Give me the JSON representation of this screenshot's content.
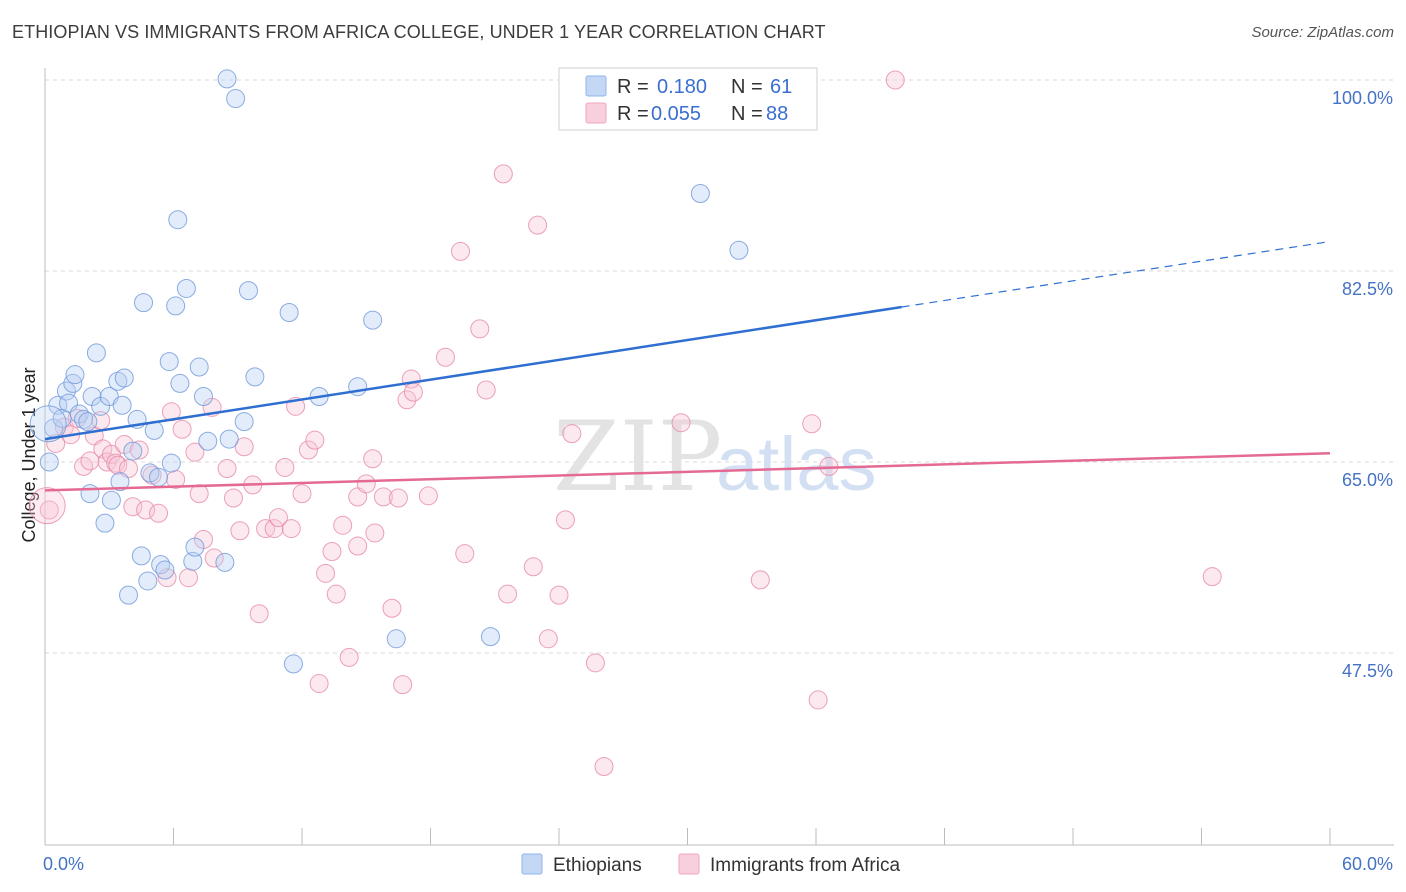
{
  "title": "ETHIOPIAN VS IMMIGRANTS FROM AFRICA COLLEGE, UNDER 1 YEAR CORRELATION CHART",
  "source": "Source: ZipAtlas.com",
  "watermark": {
    "zip": "ZIP",
    "atlas": "atlas"
  },
  "legend": {
    "r_label": "R =",
    "n_label": "N =",
    "rows": [
      {
        "r": "0.180",
        "n": "61",
        "color": "#8fb4ec"
      },
      {
        "r": "0.055",
        "n": "88",
        "color": "#f3a6bf"
      }
    ]
  },
  "chart_data": {
    "type": "scatter",
    "title": "ETHIOPIAN VS IMMIGRANTS FROM AFRICA COLLEGE, UNDER 1 YEAR CORRELATION CHART",
    "xlabel": "",
    "ylabel": "College, Under 1 year",
    "xlim": [
      0,
      60
    ],
    "ylim": [
      30,
      102
    ],
    "x_tick_labels": [
      "0.0%",
      "60.0%"
    ],
    "y_ticks": [
      47.5,
      65.0,
      82.5,
      100.0
    ],
    "y_tick_labels": [
      "47.5%",
      "65.0%",
      "82.5%",
      "100.0%"
    ],
    "grid": "horizontal dashed",
    "legend_position": "top-center",
    "series": [
      {
        "name": "Ethiopians",
        "color": "#8fb4ec",
        "stroke": "#6f98da",
        "trend": {
          "x1": 0,
          "y1": 67.1,
          "x2": 40,
          "y2": 79.2,
          "dash_to_x": 60,
          "dash_to_y": 85.2,
          "color": "#2e6fd1"
        },
        "points": [
          [
            0.2,
            65.0
          ],
          [
            0.4,
            68.1
          ],
          [
            0.6,
            70.2
          ],
          [
            0.8,
            69.0
          ],
          [
            1.0,
            71.5
          ],
          [
            1.1,
            70.4
          ],
          [
            1.3,
            72.2
          ],
          [
            1.4,
            73.0
          ],
          [
            1.6,
            69.4
          ],
          [
            1.8,
            68.9
          ],
          [
            2.0,
            68.7
          ],
          [
            2.1,
            62.1
          ],
          [
            2.2,
            71.0
          ],
          [
            2.4,
            75.0
          ],
          [
            2.6,
            70.1
          ],
          [
            2.8,
            59.4
          ],
          [
            3.0,
            71.0
          ],
          [
            3.1,
            61.5
          ],
          [
            3.4,
            72.4
          ],
          [
            3.5,
            63.2
          ],
          [
            3.6,
            70.2
          ],
          [
            3.7,
            72.7
          ],
          [
            3.9,
            52.8
          ],
          [
            4.1,
            66.0
          ],
          [
            4.3,
            68.9
          ],
          [
            4.5,
            56.4
          ],
          [
            4.6,
            79.6
          ],
          [
            4.8,
            54.1
          ],
          [
            4.9,
            64.0
          ],
          [
            5.1,
            67.9
          ],
          [
            5.3,
            63.6
          ],
          [
            5.4,
            55.6
          ],
          [
            5.6,
            55.1
          ],
          [
            5.8,
            74.2
          ],
          [
            5.9,
            64.9
          ],
          [
            6.1,
            79.3
          ],
          [
            6.2,
            87.2
          ],
          [
            6.3,
            72.2
          ],
          [
            6.6,
            80.9
          ],
          [
            6.9,
            55.9
          ],
          [
            7.0,
            57.2
          ],
          [
            7.2,
            73.7
          ],
          [
            7.4,
            71.0
          ],
          [
            7.6,
            66.9
          ],
          [
            8.4,
            55.8
          ],
          [
            8.6,
            67.1
          ],
          [
            8.5,
            100.1
          ],
          [
            8.9,
            98.3
          ],
          [
            9.3,
            68.7
          ],
          [
            9.5,
            80.7
          ],
          [
            9.8,
            72.8
          ],
          [
            11.4,
            78.7
          ],
          [
            11.6,
            46.5
          ],
          [
            12.8,
            71.0
          ],
          [
            14.6,
            71.9
          ],
          [
            15.3,
            78.0
          ],
          [
            16.4,
            48.8
          ],
          [
            20.8,
            49.0
          ],
          [
            30.6,
            89.6
          ],
          [
            32.4,
            84.4
          ],
          [
            0.15,
            68.5
          ]
        ]
      },
      {
        "name": "Immigrants from Africa",
        "color": "#f3a6bf",
        "stroke": "#e78aa8",
        "trend": {
          "x1": 0,
          "y1": 62.4,
          "x2": 60,
          "y2": 65.8,
          "color": "#e46a94"
        },
        "points": [
          [
            0.2,
            60.6
          ],
          [
            0.5,
            66.7
          ],
          [
            0.9,
            68.2
          ],
          [
            1.2,
            67.5
          ],
          [
            1.5,
            69.0
          ],
          [
            1.8,
            64.6
          ],
          [
            2.1,
            65.1
          ],
          [
            2.3,
            67.4
          ],
          [
            2.6,
            68.8
          ],
          [
            2.7,
            66.2
          ],
          [
            2.9,
            65.0
          ],
          [
            3.1,
            65.7
          ],
          [
            3.3,
            64.9
          ],
          [
            3.4,
            64.7
          ],
          [
            3.7,
            66.6
          ],
          [
            3.9,
            64.4
          ],
          [
            4.1,
            60.9
          ],
          [
            4.4,
            66.1
          ],
          [
            4.7,
            60.6
          ],
          [
            5.0,
            63.8
          ],
          [
            5.3,
            60.3
          ],
          [
            5.7,
            54.4
          ],
          [
            5.9,
            69.6
          ],
          [
            6.1,
            63.4
          ],
          [
            6.4,
            68.0
          ],
          [
            6.7,
            54.4
          ],
          [
            7.0,
            65.9
          ],
          [
            7.2,
            62.1
          ],
          [
            7.4,
            57.9
          ],
          [
            7.9,
            56.2
          ],
          [
            7.8,
            70.0
          ],
          [
            8.5,
            64.4
          ],
          [
            8.8,
            61.7
          ],
          [
            9.1,
            58.7
          ],
          [
            9.3,
            66.4
          ],
          [
            9.7,
            62.9
          ],
          [
            10.0,
            51.1
          ],
          [
            10.3,
            58.9
          ],
          [
            10.7,
            58.9
          ],
          [
            10.9,
            59.9
          ],
          [
            11.2,
            64.5
          ],
          [
            11.5,
            58.9
          ],
          [
            11.7,
            70.1
          ],
          [
            12.0,
            62.1
          ],
          [
            12.3,
            66.1
          ],
          [
            12.6,
            67.0
          ],
          [
            12.8,
            44.7
          ],
          [
            13.1,
            54.8
          ],
          [
            13.4,
            56.8
          ],
          [
            13.6,
            52.9
          ],
          [
            13.9,
            59.2
          ],
          [
            14.2,
            47.1
          ],
          [
            14.6,
            61.8
          ],
          [
            14.6,
            57.3
          ],
          [
            15.0,
            63.0
          ],
          [
            15.3,
            65.3
          ],
          [
            15.4,
            58.5
          ],
          [
            15.8,
            61.8
          ],
          [
            16.2,
            51.6
          ],
          [
            16.5,
            61.7
          ],
          [
            16.7,
            44.6
          ],
          [
            16.9,
            70.7
          ],
          [
            17.1,
            72.6
          ],
          [
            17.2,
            71.4
          ],
          [
            17.9,
            61.9
          ],
          [
            18.7,
            74.6
          ],
          [
            19.4,
            84.3
          ],
          [
            19.6,
            56.6
          ],
          [
            20.3,
            77.2
          ],
          [
            20.6,
            71.6
          ],
          [
            21.4,
            91.4
          ],
          [
            21.6,
            52.9
          ],
          [
            22.8,
            55.4
          ],
          [
            23.0,
            86.7
          ],
          [
            23.5,
            48.8
          ],
          [
            24.0,
            52.8
          ],
          [
            24.3,
            59.7
          ],
          [
            24.6,
            67.6
          ],
          [
            25.7,
            46.6
          ],
          [
            26.1,
            37.1
          ],
          [
            29.7,
            68.6
          ],
          [
            33.4,
            54.2
          ],
          [
            35.8,
            68.5
          ],
          [
            36.1,
            43.2
          ],
          [
            36.6,
            64.6
          ],
          [
            39.7,
            100.0
          ],
          [
            54.5,
            54.5
          ],
          [
            0.1,
            61.0
          ]
        ]
      }
    ]
  },
  "bottom_legend": [
    {
      "label": "Ethiopians",
      "color": "#8fb4ec"
    },
    {
      "label": "Immigrants from Africa",
      "color": "#f3a6bf"
    }
  ]
}
